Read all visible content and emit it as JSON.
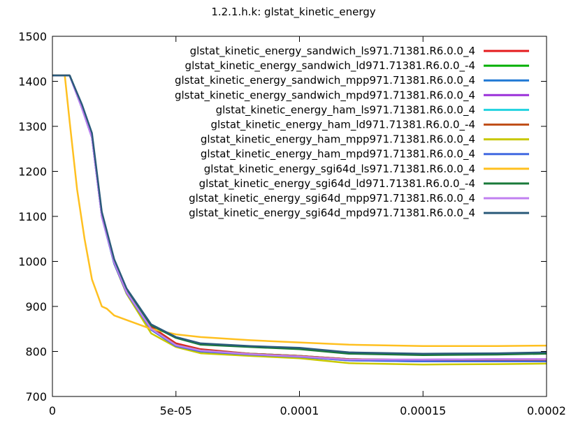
{
  "chart_data": {
    "type": "line",
    "title": "1.2.1.h.k: glstat_kinetic_energy",
    "xlabel": "",
    "ylabel": "",
    "xlim": [
      0,
      0.0002
    ],
    "ylim": [
      700,
      1500
    ],
    "x_ticks": [
      "0",
      "5e-05",
      "0.0001",
      "0.00015",
      "0.0002"
    ],
    "y_ticks": [
      "700",
      "800",
      "900",
      "1000",
      "1100",
      "1200",
      "1300",
      "1400",
      "1500"
    ],
    "grid": false,
    "legend_position": "top-right",
    "series": [
      {
        "name": "glstat_kinetic_energy_sandwich_ls971.71381.R6.0.0_4",
        "color": "#e41a1c",
        "x": [
          0,
          7e-06,
          1.2e-05,
          1.6e-05,
          2e-05,
          2.5e-05,
          3e-05,
          4e-05,
          5e-05,
          6e-05,
          8e-05,
          0.0001,
          0.00012,
          0.00015,
          0.00018,
          0.0002
        ],
        "y": [
          1413,
          1413,
          1345,
          1280,
          1105,
          1000,
          935,
          855,
          818,
          805,
          795,
          790,
          783,
          781,
          780,
          780
        ]
      },
      {
        "name": "glstat_kinetic_energy_sandwich_ld971.71381.R6.0.0_-4",
        "color": "#00b000",
        "x": [
          0,
          7e-06,
          1.2e-05,
          1.6e-05,
          2e-05,
          2.5e-05,
          3e-05,
          4e-05,
          5e-05,
          6e-05,
          8e-05,
          0.0001,
          0.00012,
          0.00015,
          0.00018,
          0.0002
        ],
        "y": [
          1413,
          1413,
          1345,
          1280,
          1105,
          995,
          930,
          850,
          815,
          802,
          795,
          790,
          782,
          780,
          779,
          779
        ]
      },
      {
        "name": "glstat_kinetic_energy_sandwich_mpp971.71381.R6.0.0_4",
        "color": "#1f78d4",
        "x": [
          0,
          7e-06,
          1.2e-05,
          1.6e-05,
          2e-05,
          2.5e-05,
          3e-05,
          4e-05,
          5e-05,
          6e-05,
          8e-05,
          0.0001,
          0.00012,
          0.00015,
          0.00018,
          0.0002
        ],
        "y": [
          1413,
          1413,
          1340,
          1275,
          1100,
          995,
          930,
          848,
          812,
          800,
          793,
          788,
          780,
          778,
          778,
          778
        ]
      },
      {
        "name": "glstat_kinetic_energy_sandwich_mpd971.71381.R6.0.0_4",
        "color": "#9b30d9",
        "x": [
          0,
          7e-06,
          1.2e-05,
          1.6e-05,
          2e-05,
          2.5e-05,
          3e-05,
          4e-05,
          5e-05,
          6e-05,
          8e-05,
          0.0001,
          0.00012,
          0.00015,
          0.00018,
          0.0002
        ],
        "y": [
          1413,
          1413,
          1340,
          1275,
          1100,
          998,
          932,
          850,
          814,
          802,
          794,
          789,
          782,
          782,
          783,
          783
        ]
      },
      {
        "name": "glstat_kinetic_energy_ham_ls971.71381.R6.0.0_4",
        "color": "#22d3e0",
        "x": [
          0,
          7e-06,
          1.2e-05,
          1.6e-05,
          2e-05,
          2.5e-05,
          3e-05,
          4e-05,
          5e-05,
          6e-05,
          8e-05,
          0.0001,
          0.00012,
          0.00015,
          0.00018,
          0.0002
        ],
        "y": [
          1413,
          1413,
          1345,
          1280,
          1105,
          998,
          933,
          852,
          815,
          803,
          795,
          790,
          783,
          781,
          780,
          780
        ]
      },
      {
        "name": "glstat_kinetic_energy_ham_ld971.71381.R6.0.0_-4",
        "color": "#c0501a",
        "x": [
          0,
          7e-06,
          1.2e-05,
          1.6e-05,
          2e-05,
          2.5e-05,
          3e-05,
          4e-05,
          5e-05,
          6e-05,
          8e-05,
          0.0001,
          0.00012,
          0.00015,
          0.00018,
          0.0002
        ],
        "y": [
          1413,
          1413,
          1345,
          1280,
          1105,
          998,
          933,
          852,
          815,
          803,
          795,
          790,
          783,
          781,
          780,
          780
        ]
      },
      {
        "name": "glstat_kinetic_energy_ham_mpp971.71381.R6.0.0_4",
        "color": "#c8c800",
        "x": [
          0,
          7e-06,
          1.2e-05,
          1.6e-05,
          2e-05,
          2.5e-05,
          3e-05,
          4e-05,
          5e-05,
          6e-05,
          8e-05,
          0.0001,
          0.00012,
          0.00015,
          0.00018,
          0.0002
        ],
        "y": [
          1413,
          1413,
          1345,
          1280,
          1105,
          995,
          928,
          840,
          810,
          796,
          790,
          785,
          774,
          771,
          772,
          773
        ]
      },
      {
        "name": "glstat_kinetic_energy_ham_mpd971.71381.R6.0.0_4",
        "color": "#4169e1",
        "x": [
          0,
          7e-06,
          1.2e-05,
          1.6e-05,
          2e-05,
          2.5e-05,
          3e-05,
          4e-05,
          5e-05,
          6e-05,
          8e-05,
          0.0001,
          0.00012,
          0.00015,
          0.00018,
          0.0002
        ],
        "y": [
          1413,
          1413,
          1340,
          1275,
          1100,
          995,
          930,
          848,
          812,
          800,
          793,
          788,
          780,
          778,
          778,
          778
        ]
      },
      {
        "name": "glstat_kinetic_energy_sgi64d_ls971.71381.R6.0.0_4",
        "color": "#ffc020",
        "x": [
          0,
          5e-06,
          7e-06,
          1e-05,
          1.3e-05,
          1.6e-05,
          2e-05,
          2.2e-05,
          2.5e-05,
          3e-05,
          4e-05,
          5e-05,
          6e-05,
          8e-05,
          0.0001,
          0.00012,
          0.00015,
          0.00018,
          0.0002
        ],
        "y": [
          1413,
          1413,
          1310,
          1160,
          1050,
          960,
          900,
          895,
          880,
          870,
          850,
          838,
          832,
          825,
          820,
          815,
          812,
          812,
          813
        ]
      },
      {
        "name": "glstat_kinetic_energy_sgi64d_ld971.71381.R6.0.0_-4",
        "color": "#1a7a3a",
        "x": [
          0,
          7e-06,
          1.2e-05,
          1.6e-05,
          2e-05,
          2.5e-05,
          3e-05,
          4e-05,
          5e-05,
          6e-05,
          8e-05,
          0.0001,
          0.00012,
          0.00015,
          0.00018,
          0.0002
        ],
        "y": [
          1413,
          1413,
          1345,
          1280,
          1105,
          1000,
          935,
          858,
          830,
          815,
          810,
          805,
          795,
          792,
          793,
          795
        ]
      },
      {
        "name": "glstat_kinetic_energy_sgi64d_mpp971.71381.R6.0.0_4",
        "color": "#c080f0",
        "x": [
          0,
          7e-06,
          1.2e-05,
          1.6e-05,
          2e-05,
          2.5e-05,
          3e-05,
          4e-05,
          5e-05,
          6e-05,
          8e-05,
          0.0001,
          0.00012,
          0.00015,
          0.00018,
          0.0002
        ],
        "y": [
          1413,
          1413,
          1340,
          1275,
          1100,
          998,
          932,
          850,
          814,
          802,
          794,
          789,
          782,
          782,
          783,
          783
        ]
      },
      {
        "name": "glstat_kinetic_energy_sgi64d_mpd971.71381.R6.0.0_4",
        "color": "#2a5a7a",
        "x": [
          0,
          7e-06,
          1.2e-05,
          1.6e-05,
          2e-05,
          2.5e-05,
          3e-05,
          4e-05,
          5e-05,
          6e-05,
          8e-05,
          0.0001,
          0.00012,
          0.00015,
          0.00018,
          0.0002
        ],
        "y": [
          1413,
          1413,
          1348,
          1285,
          1110,
          1005,
          940,
          860,
          832,
          818,
          812,
          808,
          798,
          795,
          796,
          798
        ]
      }
    ]
  }
}
